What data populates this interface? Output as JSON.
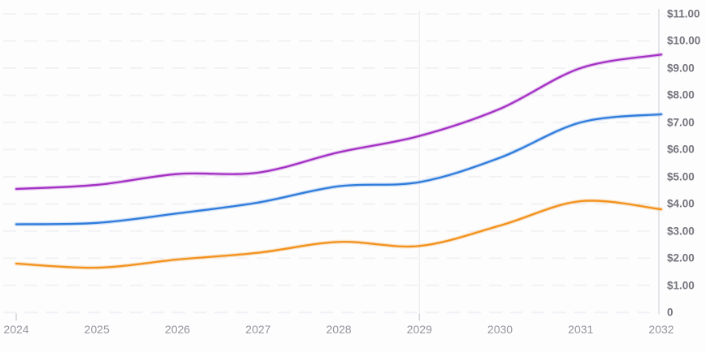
{
  "chart_data": {
    "type": "line",
    "title": "",
    "xlabel": "",
    "ylabel": "",
    "legend": "none",
    "y_axis_side": "right",
    "grid": {
      "horizontal": "dashed",
      "vertical_marker_year": 2029,
      "major_tick_years": [
        2024,
        2029
      ]
    },
    "x": [
      2024,
      2025,
      2026,
      2027,
      2028,
      2029,
      2030,
      2031,
      2032
    ],
    "xlim": [
      2024,
      2032
    ],
    "ylim": [
      0,
      11
    ],
    "series": [
      {
        "name": "purple-series",
        "color": "#a431c4",
        "values": [
          4.55,
          4.7,
          5.1,
          5.15,
          5.9,
          6.5,
          7.5,
          9.0,
          9.5
        ]
      },
      {
        "name": "blue-series",
        "color": "#2f7cdb",
        "values": [
          3.25,
          3.3,
          3.65,
          4.05,
          4.65,
          4.8,
          5.7,
          7.0,
          7.3
        ]
      },
      {
        "name": "orange-series",
        "color": "#f2921d",
        "values": [
          1.8,
          1.65,
          1.95,
          2.2,
          2.6,
          2.45,
          3.2,
          4.1,
          3.8
        ]
      }
    ],
    "y_ticks": [
      {
        "value": 11,
        "label": "$11.00"
      },
      {
        "value": 10,
        "label": "$10.00"
      },
      {
        "value": 9,
        "label": "$9.00"
      },
      {
        "value": 8,
        "label": "$8.00"
      },
      {
        "value": 7,
        "label": "$7.00"
      },
      {
        "value": 6,
        "label": "$6.00"
      },
      {
        "value": 5,
        "label": "$5.00"
      },
      {
        "value": 4,
        "label": "$4.00"
      },
      {
        "value": 3,
        "label": "$3.00"
      },
      {
        "value": 2,
        "label": "$2.00"
      },
      {
        "value": 1,
        "label": "$1.00"
      },
      {
        "value": 0,
        "label": "0"
      }
    ],
    "x_ticks": [
      {
        "value": 2024,
        "label": "2024"
      },
      {
        "value": 2025,
        "label": "2025"
      },
      {
        "value": 2026,
        "label": "2026"
      },
      {
        "value": 2027,
        "label": "2027"
      },
      {
        "value": 2028,
        "label": "2028"
      },
      {
        "value": 2029,
        "label": "2029"
      },
      {
        "value": 2030,
        "label": "2030"
      },
      {
        "value": 2031,
        "label": "2031"
      },
      {
        "value": 2032,
        "label": "2032"
      }
    ]
  },
  "theme": {
    "background": "#fdfdfe",
    "grid_color": "#f2f2f5",
    "axis_line_color": "#dcdce0",
    "tick_mark_color": "#d2d2d8",
    "vertical_marker_color": "#eeeef2",
    "y_label_color": "#76737c",
    "x_label_color": "#96949c"
  }
}
